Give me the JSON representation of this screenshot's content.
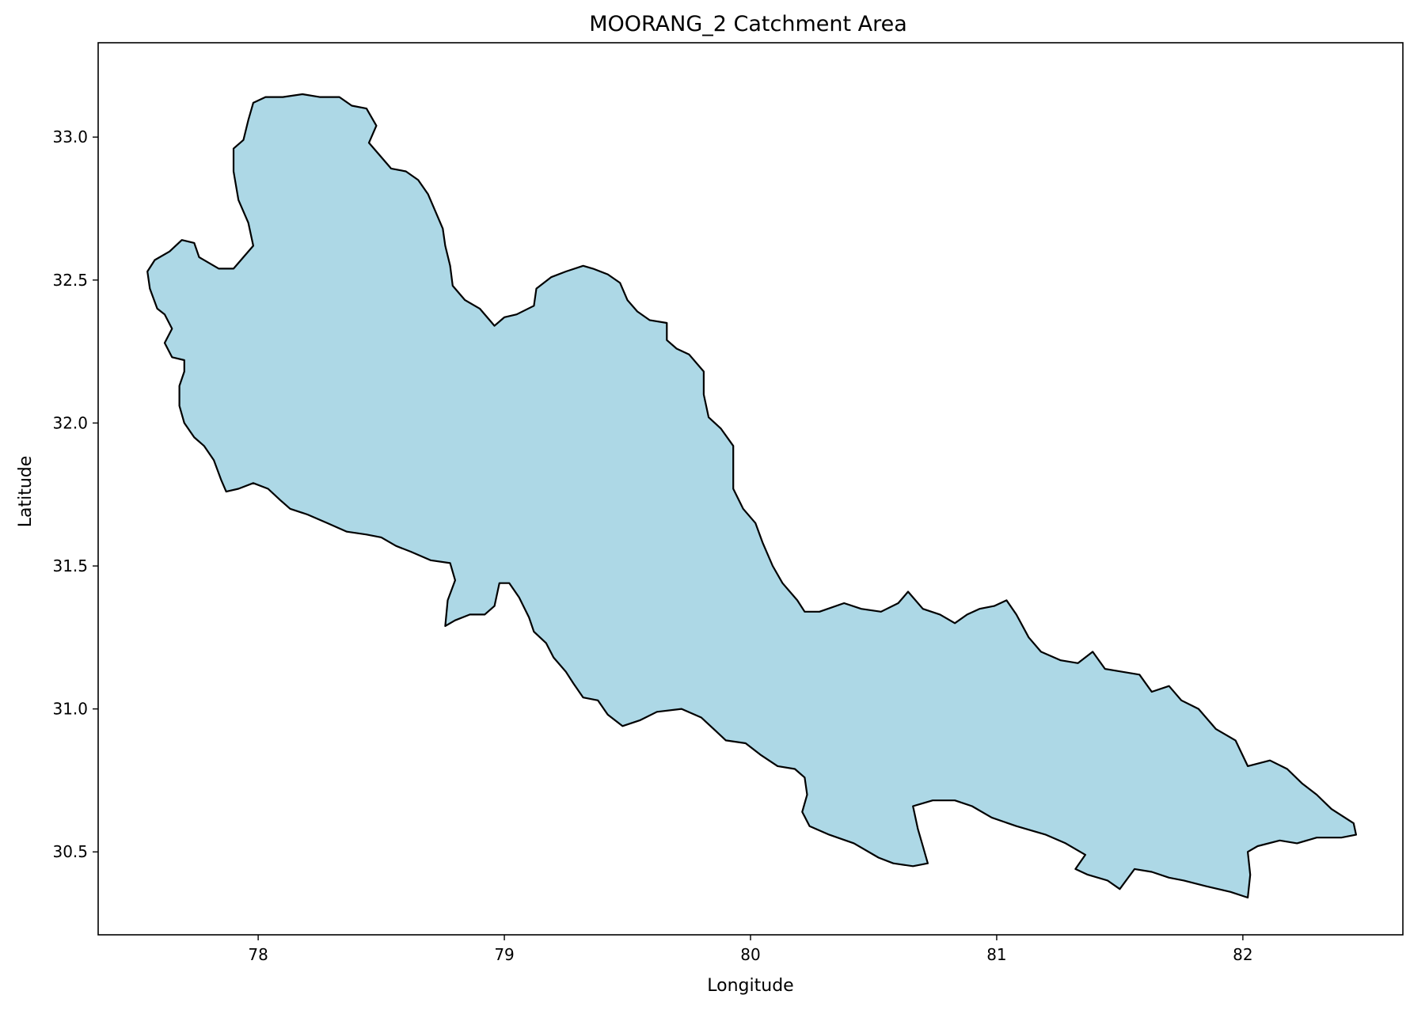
{
  "chart_data": {
    "type": "map",
    "title": "MOORANG_2 Catchment Area",
    "xlabel": "Longitude",
    "ylabel": "Latitude",
    "xlim": [
      77.35,
      82.65
    ],
    "ylim": [
      30.21,
      33.33
    ],
    "xticks": [
      78,
      79,
      80,
      81,
      82
    ],
    "yticks": [
      30.5,
      31.0,
      31.5,
      32.0,
      32.5,
      33.0
    ],
    "xtick_labels": [
      "78",
      "79",
      "80",
      "81",
      "82"
    ],
    "ytick_labels": [
      "30.5",
      "31.0",
      "31.5",
      "32.0",
      "32.5",
      "33.0"
    ],
    "grid": false,
    "fill_color": "#add8e6",
    "edge_color": "#000000",
    "polygon": [
      [
        77.64,
        32.6
      ],
      [
        77.69,
        32.64
      ],
      [
        77.74,
        32.63
      ],
      [
        77.76,
        32.58
      ],
      [
        77.84,
        32.54
      ],
      [
        77.9,
        32.54
      ],
      [
        77.94,
        32.58
      ],
      [
        77.98,
        32.62
      ],
      [
        77.96,
        32.7
      ],
      [
        77.92,
        32.78
      ],
      [
        77.9,
        32.88
      ],
      [
        77.9,
        32.96
      ],
      [
        77.94,
        32.99
      ],
      [
        77.96,
        33.06
      ],
      [
        77.98,
        33.12
      ],
      [
        78.03,
        33.14
      ],
      [
        78.1,
        33.14
      ],
      [
        78.18,
        33.15
      ],
      [
        78.25,
        33.14
      ],
      [
        78.33,
        33.14
      ],
      [
        78.38,
        33.11
      ],
      [
        78.44,
        33.1
      ],
      [
        78.48,
        33.04
      ],
      [
        78.45,
        32.98
      ],
      [
        78.49,
        32.94
      ],
      [
        78.54,
        32.89
      ],
      [
        78.6,
        32.88
      ],
      [
        78.65,
        32.85
      ],
      [
        78.69,
        32.8
      ],
      [
        78.72,
        32.74
      ],
      [
        78.75,
        32.68
      ],
      [
        78.76,
        32.62
      ],
      [
        78.78,
        32.55
      ],
      [
        78.79,
        32.48
      ],
      [
        78.84,
        32.43
      ],
      [
        78.9,
        32.4
      ],
      [
        78.96,
        32.34
      ],
      [
        79.0,
        32.37
      ],
      [
        79.05,
        32.38
      ],
      [
        79.12,
        32.41
      ],
      [
        79.13,
        32.47
      ],
      [
        79.19,
        32.51
      ],
      [
        79.25,
        32.53
      ],
      [
        79.32,
        32.55
      ],
      [
        79.36,
        32.54
      ],
      [
        79.42,
        32.52
      ],
      [
        79.47,
        32.49
      ],
      [
        79.5,
        32.43
      ],
      [
        79.54,
        32.39
      ],
      [
        79.59,
        32.36
      ],
      [
        79.66,
        32.35
      ],
      [
        79.66,
        32.29
      ],
      [
        79.7,
        32.26
      ],
      [
        79.75,
        32.24
      ],
      [
        79.81,
        32.18
      ],
      [
        79.81,
        32.1
      ],
      [
        79.83,
        32.02
      ],
      [
        79.88,
        31.98
      ],
      [
        79.93,
        31.92
      ],
      [
        79.93,
        31.84
      ],
      [
        79.93,
        31.77
      ],
      [
        79.97,
        31.7
      ],
      [
        80.02,
        31.65
      ],
      [
        80.05,
        31.58
      ],
      [
        80.09,
        31.5
      ],
      [
        80.13,
        31.44
      ],
      [
        80.19,
        31.38
      ],
      [
        80.22,
        31.34
      ],
      [
        80.28,
        31.34
      ],
      [
        80.38,
        31.37
      ],
      [
        80.45,
        31.35
      ],
      [
        80.53,
        31.34
      ],
      [
        80.6,
        31.37
      ],
      [
        80.64,
        31.41
      ],
      [
        80.7,
        31.35
      ],
      [
        80.77,
        31.33
      ],
      [
        80.83,
        31.3
      ],
      [
        80.88,
        31.33
      ],
      [
        80.93,
        31.35
      ],
      [
        80.99,
        31.36
      ],
      [
        81.04,
        31.38
      ],
      [
        81.08,
        31.33
      ],
      [
        81.13,
        31.25
      ],
      [
        81.18,
        31.2
      ],
      [
        81.26,
        31.17
      ],
      [
        81.33,
        31.16
      ],
      [
        81.39,
        31.2
      ],
      [
        81.44,
        31.14
      ],
      [
        81.51,
        31.13
      ],
      [
        81.58,
        31.12
      ],
      [
        81.63,
        31.06
      ],
      [
        81.7,
        31.08
      ],
      [
        81.75,
        31.03
      ],
      [
        81.82,
        31.0
      ],
      [
        81.89,
        30.93
      ],
      [
        81.97,
        30.89
      ],
      [
        82.02,
        30.8
      ],
      [
        82.11,
        30.82
      ],
      [
        82.18,
        30.79
      ],
      [
        82.24,
        30.74
      ],
      [
        82.3,
        30.7
      ],
      [
        82.36,
        30.65
      ],
      [
        82.45,
        30.6
      ],
      [
        82.46,
        30.56
      ],
      [
        82.4,
        30.55
      ],
      [
        82.3,
        30.55
      ],
      [
        82.22,
        30.53
      ],
      [
        82.15,
        30.54
      ],
      [
        82.06,
        30.52
      ],
      [
        82.02,
        30.5
      ],
      [
        82.03,
        30.42
      ],
      [
        82.02,
        30.34
      ],
      [
        81.95,
        30.36
      ],
      [
        81.85,
        30.38
      ],
      [
        81.76,
        30.4
      ],
      [
        81.7,
        30.41
      ],
      [
        81.63,
        30.43
      ],
      [
        81.56,
        30.44
      ],
      [
        81.5,
        30.37
      ],
      [
        81.45,
        30.4
      ],
      [
        81.37,
        30.42
      ],
      [
        81.32,
        30.44
      ],
      [
        81.36,
        30.49
      ],
      [
        81.28,
        30.53
      ],
      [
        81.2,
        30.56
      ],
      [
        81.08,
        30.59
      ],
      [
        80.98,
        30.62
      ],
      [
        80.9,
        30.66
      ],
      [
        80.83,
        30.68
      ],
      [
        80.74,
        30.68
      ],
      [
        80.66,
        30.66
      ],
      [
        80.68,
        30.58
      ],
      [
        80.7,
        30.52
      ],
      [
        80.72,
        30.46
      ],
      [
        80.66,
        30.45
      ],
      [
        80.58,
        30.46
      ],
      [
        80.52,
        30.48
      ],
      [
        80.42,
        30.53
      ],
      [
        80.32,
        30.56
      ],
      [
        80.24,
        30.59
      ],
      [
        80.21,
        30.64
      ],
      [
        80.23,
        30.7
      ],
      [
        80.22,
        30.76
      ],
      [
        80.18,
        30.79
      ],
      [
        80.11,
        30.8
      ],
      [
        80.04,
        30.84
      ],
      [
        79.98,
        30.88
      ],
      [
        79.9,
        30.89
      ],
      [
        79.85,
        30.93
      ],
      [
        79.8,
        30.97
      ],
      [
        79.72,
        31.0
      ],
      [
        79.62,
        30.99
      ],
      [
        79.55,
        30.96
      ],
      [
        79.48,
        30.94
      ],
      [
        79.42,
        30.98
      ],
      [
        79.38,
        31.03
      ],
      [
        79.32,
        31.04
      ],
      [
        79.28,
        31.09
      ],
      [
        79.25,
        31.13
      ],
      [
        79.2,
        31.18
      ],
      [
        79.17,
        31.23
      ],
      [
        79.12,
        31.27
      ],
      [
        79.1,
        31.32
      ],
      [
        79.06,
        31.39
      ],
      [
        79.02,
        31.44
      ],
      [
        78.98,
        31.44
      ],
      [
        78.96,
        31.36
      ],
      [
        78.92,
        31.33
      ],
      [
        78.86,
        31.33
      ],
      [
        78.8,
        31.31
      ],
      [
        78.76,
        31.29
      ],
      [
        78.77,
        31.38
      ],
      [
        78.8,
        31.45
      ],
      [
        78.78,
        31.51
      ],
      [
        78.7,
        31.52
      ],
      [
        78.62,
        31.55
      ],
      [
        78.56,
        31.57
      ],
      [
        78.5,
        31.6
      ],
      [
        78.44,
        31.61
      ],
      [
        78.36,
        31.62
      ],
      [
        78.28,
        31.65
      ],
      [
        78.2,
        31.68
      ],
      [
        78.13,
        31.7
      ],
      [
        78.09,
        31.73
      ],
      [
        78.04,
        31.77
      ],
      [
        77.98,
        31.79
      ],
      [
        77.92,
        31.77
      ],
      [
        77.87,
        31.76
      ],
      [
        77.85,
        31.8
      ],
      [
        77.82,
        31.87
      ],
      [
        77.78,
        31.92
      ],
      [
        77.74,
        31.95
      ],
      [
        77.7,
        32.0
      ],
      [
        77.68,
        32.06
      ],
      [
        77.68,
        32.13
      ],
      [
        77.7,
        32.18
      ],
      [
        77.7,
        32.22
      ],
      [
        77.65,
        32.23
      ],
      [
        77.62,
        32.28
      ],
      [
        77.65,
        32.33
      ],
      [
        77.62,
        32.38
      ],
      [
        77.59,
        32.4
      ],
      [
        77.56,
        32.47
      ],
      [
        77.55,
        32.53
      ],
      [
        77.58,
        32.57
      ],
      [
        77.64,
        32.6
      ]
    ]
  }
}
